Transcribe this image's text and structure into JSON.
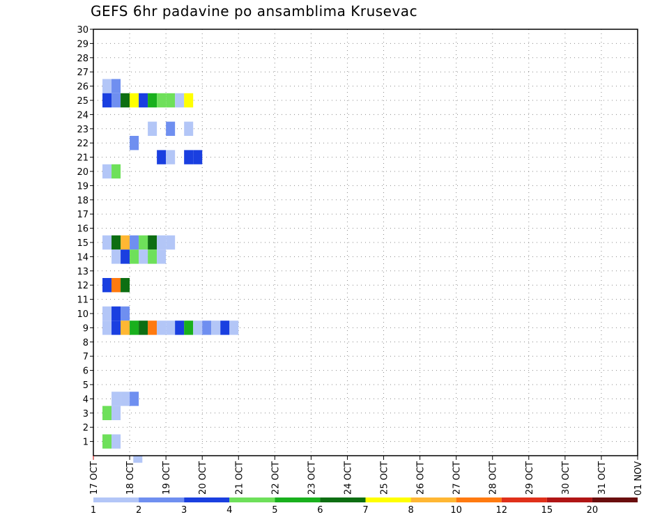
{
  "chart_data": {
    "type": "heatmap",
    "title": "GEFS 6hr padavine po ansamblima Krusevac",
    "xlabel": "",
    "ylabel": "",
    "x_tick_labels": [
      "17 OCT",
      "18 OCT",
      "19 OCT",
      "20 OCT",
      "21 OCT",
      "22 OCT",
      "23 OCT",
      "24 OCT",
      "25 OCT",
      "26 OCT",
      "27 OCT",
      "28 OCT",
      "29 OCT",
      "30 OCT",
      "31 OCT",
      "01 NOV"
    ],
    "y_tick_labels": [
      "1",
      "2",
      "3",
      "4",
      "5",
      "6",
      "7",
      "8",
      "9",
      "10",
      "11",
      "12",
      "13",
      "14",
      "15",
      "16",
      "17",
      "18",
      "19",
      "20",
      "21",
      "22",
      "23",
      "24",
      "25",
      "26",
      "27",
      "28",
      "29",
      "30"
    ],
    "x_range_days": [
      0,
      15
    ],
    "y_range": [
      0,
      30
    ],
    "grid": true,
    "colorbar": {
      "tick_labels": [
        "1",
        "2",
        "3",
        "4",
        "5",
        "6",
        "7",
        "8",
        "10",
        "12",
        "15",
        "20"
      ],
      "colors": [
        "#b3c6f7",
        "#6f8ff0",
        "#1a3fe0",
        "#6ee05a",
        "#19b01d",
        "#0d6e12",
        "#ffff00",
        "#ffb733",
        "#ff7a10",
        "#e0301a",
        "#b01515",
        "#6a0e0e"
      ]
    },
    "cells": [
      {
        "member": 0,
        "day": 1.1,
        "v": 1
      },
      {
        "member": 26,
        "day": 0.25,
        "v": 1
      },
      {
        "member": 26,
        "day": 0.5,
        "v": 2
      },
      {
        "member": 25,
        "day": 0.25,
        "v": 3
      },
      {
        "member": 25,
        "day": 0.5,
        "v": 2
      },
      {
        "member": 25,
        "day": 0.75,
        "v": 6
      },
      {
        "member": 25,
        "day": 1.0,
        "v": 7
      },
      {
        "member": 25,
        "day": 1.25,
        "v": 3
      },
      {
        "member": 25,
        "day": 1.5,
        "v": 5
      },
      {
        "member": 25,
        "day": 1.75,
        "v": 4
      },
      {
        "member": 25,
        "day": 2.0,
        "v": 4
      },
      {
        "member": 25,
        "day": 2.25,
        "v": 1
      },
      {
        "member": 25,
        "day": 2.5,
        "v": 7
      },
      {
        "member": 23,
        "day": 1.5,
        "v": 1
      },
      {
        "member": 23,
        "day": 2.0,
        "v": 2
      },
      {
        "member": 23,
        "day": 2.5,
        "v": 1
      },
      {
        "member": 22,
        "day": 1.0,
        "v": 2
      },
      {
        "member": 21,
        "day": 1.75,
        "v": 3
      },
      {
        "member": 21,
        "day": 2.0,
        "v": 1
      },
      {
        "member": 21,
        "day": 2.5,
        "v": 3
      },
      {
        "member": 21,
        "day": 2.75,
        "v": 3
      },
      {
        "member": 20,
        "day": 0.25,
        "v": 1
      },
      {
        "member": 20,
        "day": 0.5,
        "v": 4
      },
      {
        "member": 15,
        "day": 0.25,
        "v": 1
      },
      {
        "member": 15,
        "day": 0.5,
        "v": 6
      },
      {
        "member": 15,
        "day": 0.75,
        "v": 8
      },
      {
        "member": 15,
        "day": 1.0,
        "v": 2
      },
      {
        "member": 15,
        "day": 1.25,
        "v": 4
      },
      {
        "member": 15,
        "day": 1.5,
        "v": 6
      },
      {
        "member": 15,
        "day": 1.75,
        "v": 1
      },
      {
        "member": 15,
        "day": 2.0,
        "v": 1
      },
      {
        "member": 14,
        "day": 0.5,
        "v": 1
      },
      {
        "member": 14,
        "day": 0.75,
        "v": 3
      },
      {
        "member": 14,
        "day": 1.0,
        "v": 4
      },
      {
        "member": 14,
        "day": 1.25,
        "v": 1
      },
      {
        "member": 14,
        "day": 1.5,
        "v": 4
      },
      {
        "member": 14,
        "day": 1.75,
        "v": 1
      },
      {
        "member": 12,
        "day": 0.25,
        "v": 3
      },
      {
        "member": 12,
        "day": 0.5,
        "v": 10
      },
      {
        "member": 12,
        "day": 0.75,
        "v": 6
      },
      {
        "member": 10,
        "day": 0.25,
        "v": 1
      },
      {
        "member": 10,
        "day": 0.5,
        "v": 3
      },
      {
        "member": 10,
        "day": 0.75,
        "v": 2
      },
      {
        "member": 9,
        "day": 0.25,
        "v": 1
      },
      {
        "member": 9,
        "day": 0.5,
        "v": 3
      },
      {
        "member": 9,
        "day": 0.75,
        "v": 8
      },
      {
        "member": 9,
        "day": 1.0,
        "v": 5
      },
      {
        "member": 9,
        "day": 1.25,
        "v": 6
      },
      {
        "member": 9,
        "day": 1.5,
        "v": 10
      },
      {
        "member": 9,
        "day": 1.75,
        "v": 1
      },
      {
        "member": 9,
        "day": 2.0,
        "v": 1
      },
      {
        "member": 9,
        "day": 2.25,
        "v": 3
      },
      {
        "member": 9,
        "day": 2.5,
        "v": 5
      },
      {
        "member": 9,
        "day": 2.75,
        "v": 1
      },
      {
        "member": 9,
        "day": 3.0,
        "v": 2
      },
      {
        "member": 9,
        "day": 3.25,
        "v": 1
      },
      {
        "member": 9,
        "day": 3.5,
        "v": 3
      },
      {
        "member": 9,
        "day": 3.75,
        "v": 1
      },
      {
        "member": 4,
        "day": 0.5,
        "v": 1
      },
      {
        "member": 4,
        "day": 0.75,
        "v": 1
      },
      {
        "member": 4,
        "day": 1.0,
        "v": 2
      },
      {
        "member": 3,
        "day": 0.25,
        "v": 4
      },
      {
        "member": 3,
        "day": 0.5,
        "v": 1
      },
      {
        "member": 1,
        "day": 0.25,
        "v": 4
      },
      {
        "member": 1,
        "day": 0.5,
        "v": 1
      }
    ]
  }
}
